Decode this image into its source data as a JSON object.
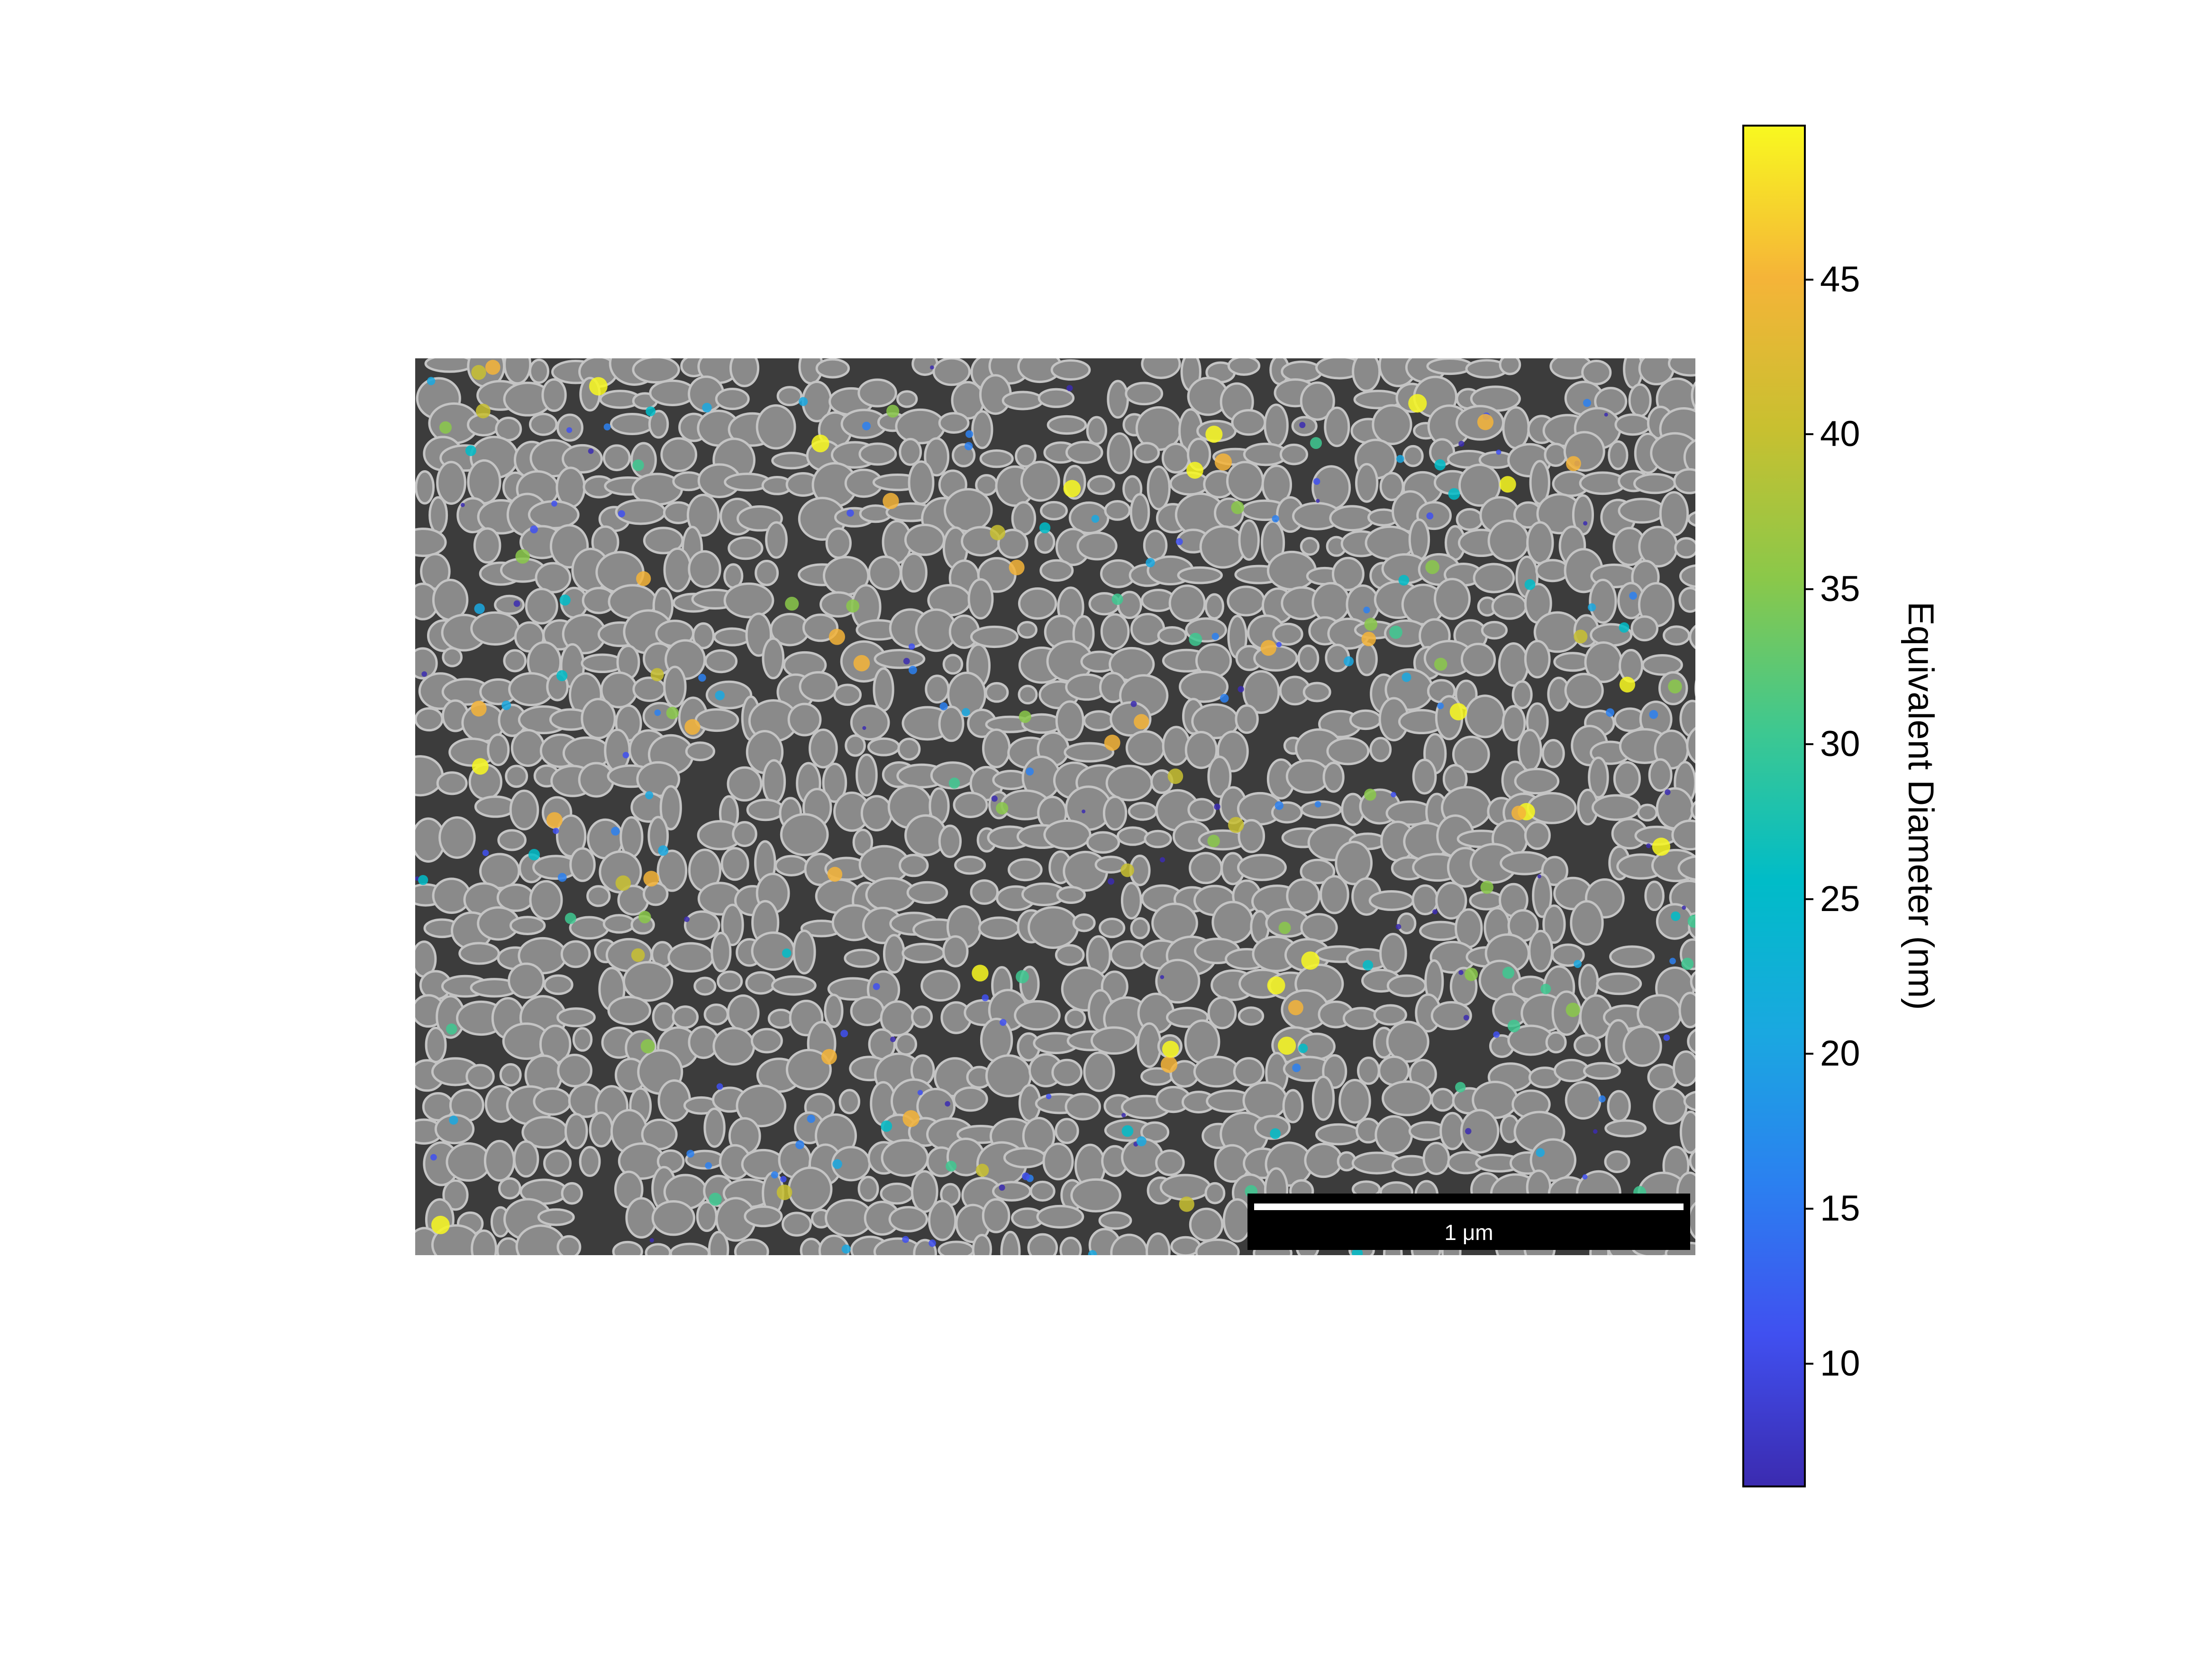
{
  "image": {
    "subject": "particles-on-textured-background",
    "background_color": "#3c3c3c",
    "particle_fill": "#8a8a8a",
    "particle_rim": "#c4c4c4"
  },
  "scale_bar": {
    "label": "1 μm"
  },
  "colorbar": {
    "title": "Equivalent Diameter (nm)",
    "range": [
      6,
      50
    ],
    "ticks": [
      45,
      40,
      35,
      30,
      25,
      20,
      15,
      10
    ],
    "tick_labels": [
      "45",
      "40",
      "35",
      "30",
      "25",
      "20",
      "15",
      "10"
    ],
    "colormap": [
      "#3b2bb0",
      "#4050f0",
      "#2b80f0",
      "#1aa8e0",
      "#00bcc8",
      "#3ec890",
      "#8ac84a",
      "#c8c030",
      "#f5b438",
      "#f8f820"
    ]
  }
}
